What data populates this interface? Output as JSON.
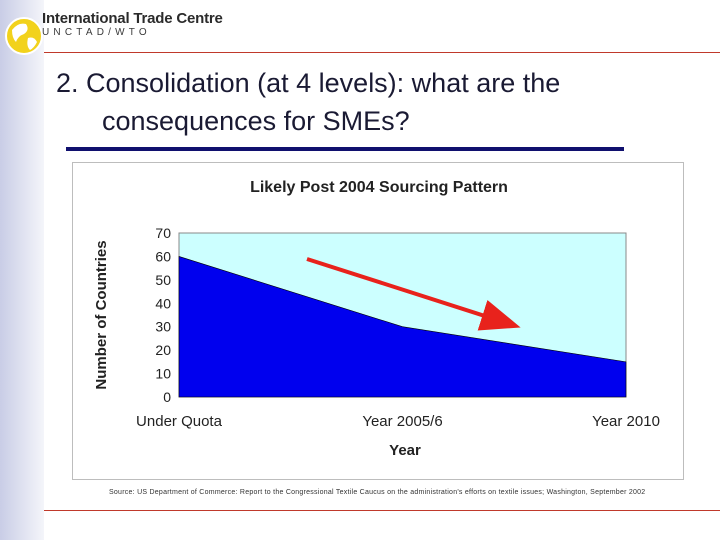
{
  "header": {
    "org_name": "International Trade Centre",
    "org_subtitle": "UNCTAD/WTO"
  },
  "slide": {
    "title_line1": "2. Consolidation (at 4 levels): what are the",
    "title_line2": "consequences for SMEs?",
    "source": "Source: US Department of Commerce: Report to the Congressional Textile Caucus on the administration's efforts on textile issues; Washington, September 2002"
  },
  "colors": {
    "area_fill": "#0000ee",
    "plot_bg": "#ccffff",
    "arrow": "#e8221c",
    "title_underline": "#10106e",
    "rules": "#c0392b"
  },
  "chart_data": {
    "type": "area",
    "title": "Likely Post 2004 Sourcing Pattern",
    "xlabel": "Year",
    "ylabel": "Number of Countries",
    "categories": [
      "Under Quota",
      "Year 2005/6",
      "Year 2010"
    ],
    "values": [
      60,
      30,
      15
    ],
    "ylim": [
      0,
      70
    ],
    "yticks": [
      0,
      10,
      20,
      30,
      40,
      50,
      60,
      70
    ],
    "grid": false,
    "legend": "none",
    "annotations": [
      {
        "type": "arrow",
        "direction": "down-right",
        "color": "red"
      }
    ]
  }
}
